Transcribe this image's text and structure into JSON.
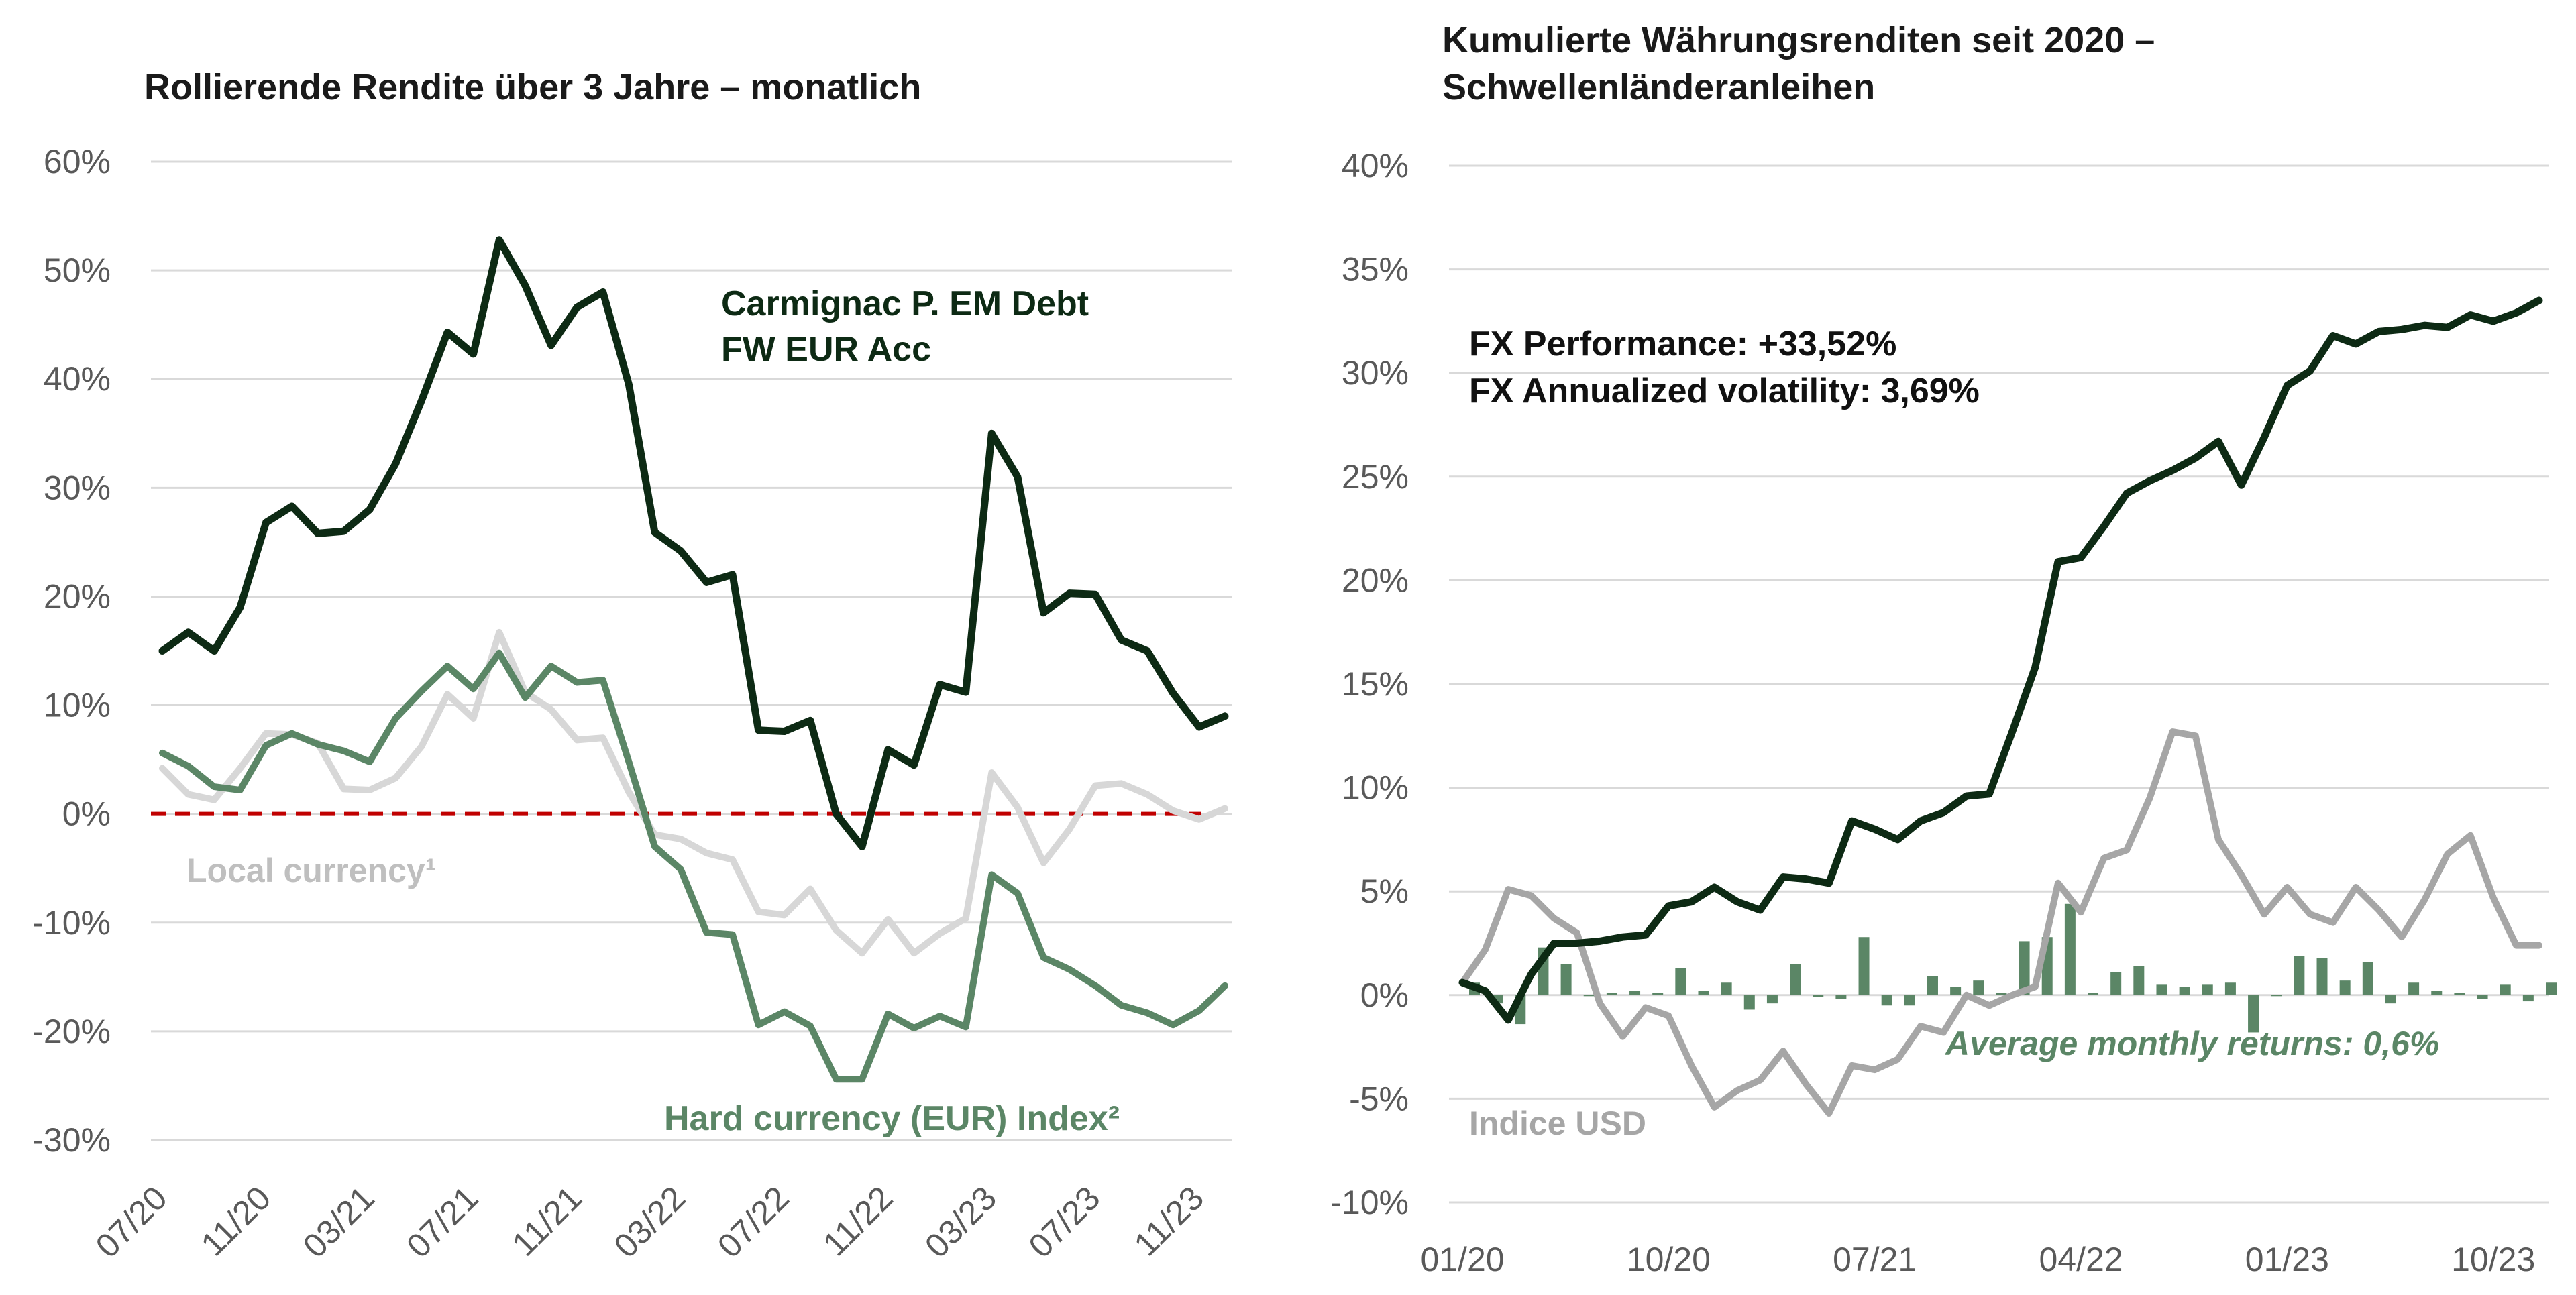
{
  "colors": {
    "fund": "#0d2a14",
    "hard": "#5b8666",
    "local": "#d7d7d7",
    "usd": "#a6a6a6",
    "bars": "#5b8666",
    "zero_line": "#c00000",
    "grid": "#d9d9d9",
    "tick_text": "#595959"
  },
  "chart_data": [
    {
      "type": "line",
      "title": "Rollierende Rendite über 3 Jahre – monatlich",
      "xlabel": "",
      "ylabel": "",
      "ylim": [
        -30,
        60
      ],
      "yticks": [
        60,
        50,
        40,
        30,
        20,
        10,
        0,
        -10,
        -20,
        -30
      ],
      "ytick_labels": [
        "60%",
        "50%",
        "40%",
        "30%",
        "20%",
        "10%",
        "0%",
        "-10%",
        "-20%",
        "-30%"
      ],
      "xtick_labels": [
        "07/20",
        "11/20",
        "03/21",
        "07/21",
        "11/21",
        "03/22",
        "07/22",
        "11/22",
        "03/23",
        "07/23",
        "11/23"
      ],
      "xtick_index": [
        0,
        4,
        8,
        12,
        16,
        20,
        24,
        28,
        32,
        36,
        40
      ],
      "x_count": 42,
      "grid": true,
      "zero_line": "dashed",
      "series": [
        {
          "name": "Carmignac P. EM Debt FW EUR Acc",
          "label": "Carmignac P. EM Debt FW EUR Acc",
          "label_lines": [
            "Carmignac P. EM Debt",
            "FW EUR Acc"
          ],
          "color_key": "fund",
          "values": [
            15,
            16.7,
            15,
            19,
            26.8,
            28.3,
            25.8,
            26,
            28,
            32.2,
            38,
            44.3,
            42.3,
            52.8,
            48.6,
            43.1,
            46.6,
            48,
            39.5,
            25.9,
            24.2,
            21.3,
            22,
            7.7,
            7.6,
            8.6,
            0,
            -3,
            5.9,
            4.5,
            11.9,
            11.2,
            35,
            31,
            18.5,
            20.3,
            20.2,
            16,
            15,
            11.1,
            8,
            9
          ]
        },
        {
          "name": "Local currency¹",
          "label": "Local currency¹",
          "color_key": "local",
          "values": [
            4.2,
            1.8,
            1.3,
            4.2,
            7.4,
            7.3,
            6.5,
            2.3,
            2.2,
            3.3,
            6.2,
            11,
            8.8,
            16.7,
            11.2,
            9.6,
            6.8,
            7,
            2,
            -1.9,
            -2.3,
            -3.6,
            -4.2,
            -9,
            -9.3,
            -6.9,
            -10.7,
            -12.8,
            -9.7,
            -12.8,
            -11,
            -9.6,
            3.8,
            0.6,
            -4.5,
            -1.4,
            2.6,
            2.8,
            1.8,
            0.3,
            -0.5,
            0.5
          ]
        },
        {
          "name": "Hard currency (EUR) Index²",
          "label": "Hard currency (EUR) Index²",
          "color_key": "hard",
          "values": [
            5.6,
            4.4,
            2.5,
            2.2,
            6.3,
            7.4,
            6.4,
            5.8,
            4.8,
            8.8,
            11.3,
            13.6,
            11.5,
            14.8,
            10.7,
            13.6,
            12.1,
            12.3,
            4.8,
            -3,
            -5.1,
            -10.9,
            -11.1,
            -19.4,
            -18.2,
            -19.5,
            -24.4,
            -24.4,
            -18.4,
            -19.7,
            -18.6,
            -19.6,
            -5.6,
            -7.3,
            -13.2,
            -14.3,
            -15.8,
            -17.6,
            -18.3,
            -19.4,
            -18.1,
            -15.8
          ]
        }
      ]
    },
    {
      "type": "line",
      "title": "Kumulierte Währungsrenditen seit 2020 – Schwellenländeranleihen",
      "title_lines": [
        "Kumulierte Währungsrenditen seit 2020 –",
        "Schwellenländeranleihen"
      ],
      "xlabel": "",
      "ylabel": "",
      "ylim": [
        -10,
        40
      ],
      "yticks": [
        40,
        35,
        30,
        25,
        20,
        15,
        10,
        5,
        0,
        -5,
        -10
      ],
      "ytick_labels": [
        "40%",
        "35%",
        "30%",
        "25%",
        "20%",
        "15%",
        "10%",
        "5%",
        "0%",
        "-5%",
        "-10%"
      ],
      "xtick_labels": [
        "01/20",
        "10/20",
        "07/21",
        "04/22",
        "01/23",
        "10/23"
      ],
      "xtick_index": [
        0,
        9,
        18,
        27,
        36,
        45
      ],
      "x_count": 48,
      "grid": true,
      "annotations": [
        "FX Performance: +33,52%",
        "FX Annualized volatility: 3,69%",
        "Average monthly returns: 0,6%"
      ],
      "series": [
        {
          "name": "FX Performance",
          "color_key": "fund",
          "values": [
            0.6,
            0.2,
            -1.2,
            1,
            2.5,
            2.5,
            2.6,
            2.8,
            2.9,
            4.3,
            4.5,
            5.2,
            4.5,
            4.1,
            5.7,
            5.6,
            5.4,
            8.4,
            8,
            7.5,
            8.4,
            8.8,
            9.6,
            9.7,
            12.7,
            15.8,
            20.9,
            21.1,
            22.6,
            24.2,
            24.8,
            25.3,
            25.9,
            26.7,
            24.6,
            26.9,
            29.4,
            30.1,
            31.8,
            31.4,
            32,
            32.1,
            32.3,
            32.2,
            32.8,
            32.5,
            32.9,
            33.5
          ]
        },
        {
          "name": "Indice USD",
          "label": "Indice USD",
          "color_key": "usd",
          "values": [
            0.6,
            2.2,
            5.1,
            4.8,
            3.7,
            3,
            -0.4,
            -2,
            -0.6,
            -1,
            -3.4,
            -5.4,
            -4.6,
            -4.1,
            -2.7,
            -4.3,
            -5.7,
            -3.4,
            -3.6,
            -3.1,
            -1.5,
            -1.8,
            0,
            -0.5,
            0,
            0.4,
            5.4,
            4,
            6.6,
            7,
            9.5,
            12.7,
            12.5,
            7.5,
            5.8,
            3.9,
            5.2,
            3.9,
            3.5,
            5.2,
            4.1,
            2.8,
            4.6,
            6.8,
            7.7,
            4.7,
            2.4,
            2.4
          ]
        },
        {
          "name": "Monthly returns",
          "type": "bar",
          "color_key": "bars",
          "values": [
            0.6,
            -0.4,
            -1.4,
            2.3,
            1.5,
            0,
            0.1,
            0.2,
            0.1,
            1.3,
            0.2,
            0.6,
            -0.7,
            -0.4,
            1.5,
            -0.1,
            -0.2,
            2.8,
            -0.5,
            -0.5,
            0.9,
            0.4,
            0.7,
            0.1,
            2.6,
            2.8,
            4.4,
            0.1,
            1.1,
            1.4,
            0.5,
            0.4,
            0.5,
            0.6,
            -1.8,
            0,
            1.9,
            1.8,
            0.7,
            1.6,
            -0.4,
            0.6,
            0.2,
            0.1,
            -0.2,
            0.5,
            -0.3,
            0.6
          ]
        }
      ]
    }
  ]
}
